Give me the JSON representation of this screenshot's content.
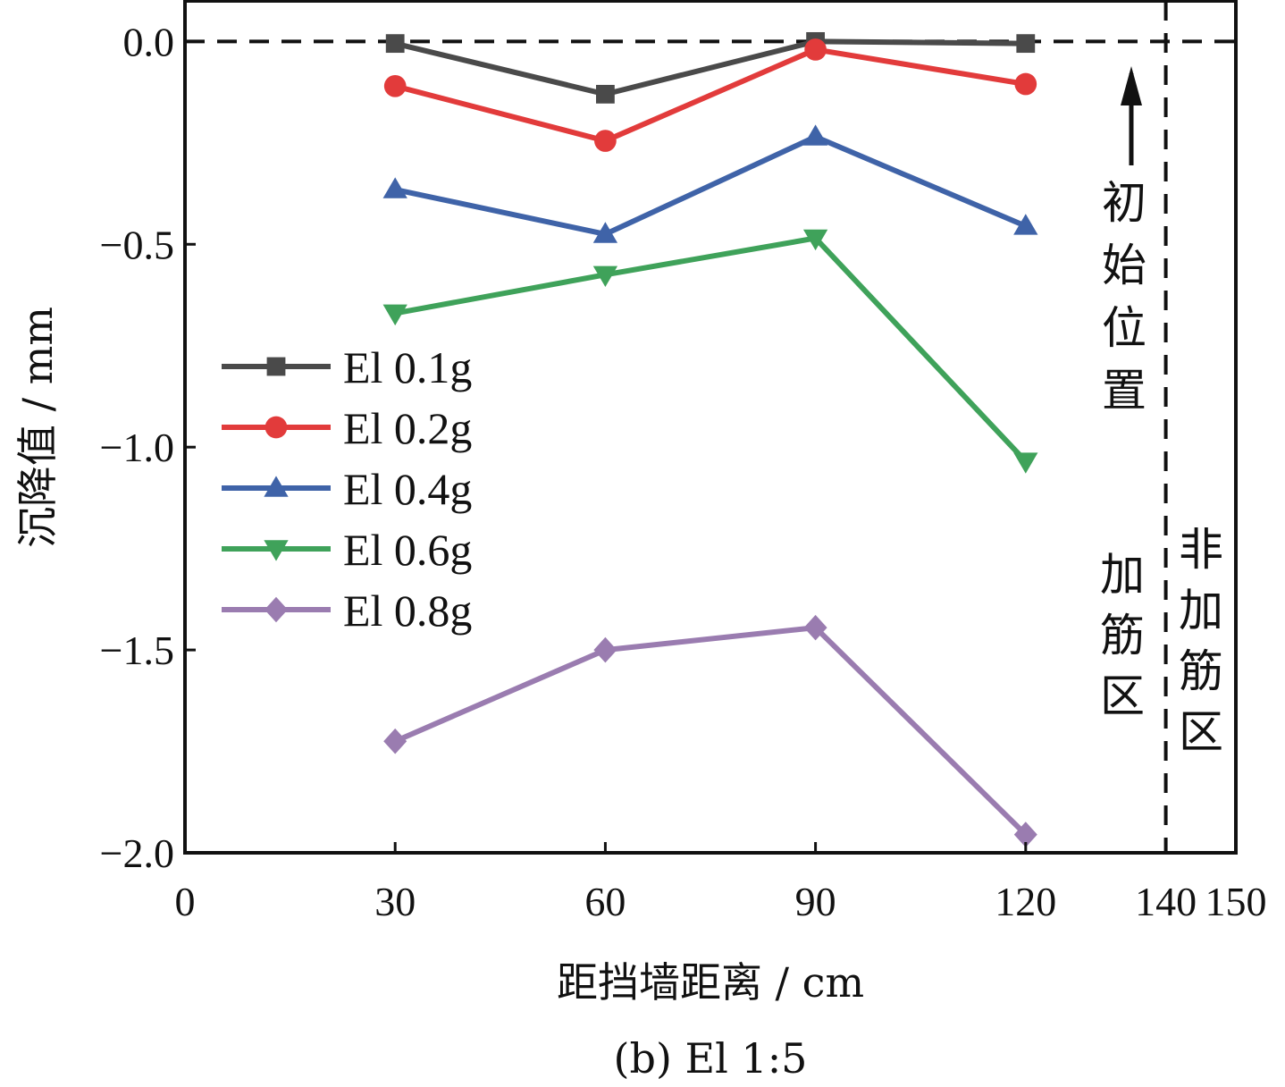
{
  "chart_data": {
    "type": "line",
    "title": "(b) El 1:5",
    "xlabel": "距挡墙距离 / cm",
    "ylabel": "沉降值 / mm",
    "xlim": [
      0,
      150
    ],
    "ylim": [
      -2.0,
      0.1
    ],
    "x_ticks": [
      0,
      30,
      60,
      90,
      120,
      140,
      150
    ],
    "x_tick_labels": [
      "0",
      "30",
      "60",
      "90",
      "120",
      "140",
      "150"
    ],
    "y_ticks": [
      0.0,
      -0.5,
      -1.0,
      -1.5,
      -2.0
    ],
    "y_tick_labels": [
      "0.0",
      "−0.5",
      "−1.0",
      "−1.5",
      "−2.0"
    ],
    "x": [
      30,
      60,
      90,
      120
    ],
    "series": [
      {
        "name": "El 0.1g",
        "values": [
          -0.005,
          -0.13,
          0.0,
          -0.005
        ],
        "color": "#4a4a4a",
        "marker": "square"
      },
      {
        "name": "El 0.2g",
        "values": [
          -0.11,
          -0.245,
          -0.02,
          -0.105
        ],
        "color": "#e23b3b",
        "marker": "circle"
      },
      {
        "name": "El 0.4g",
        "values": [
          -0.365,
          -0.475,
          -0.235,
          -0.455
        ],
        "color": "#3f63a8",
        "marker": "triangle-up"
      },
      {
        "name": "El 0.6g",
        "values": [
          -0.67,
          -0.575,
          -0.485,
          -1.035
        ],
        "color": "#3fa25a",
        "marker": "triangle-down"
      },
      {
        "name": "El 0.8g",
        "values": [
          -1.725,
          -1.5,
          -1.445,
          -1.955
        ],
        "color": "#9a7cb0",
        "marker": "diamond"
      }
    ],
    "reference_lines": [
      {
        "orientation": "horizontal",
        "value": 0.0,
        "style": "dashed"
      },
      {
        "orientation": "vertical",
        "value": 140,
        "style": "dashed"
      }
    ],
    "annotations": {
      "initial_position": "初始位置",
      "reinforced_zone": "加筋区",
      "unreinforced_zone": "非加筋区"
    },
    "legend_position": "left-middle"
  }
}
